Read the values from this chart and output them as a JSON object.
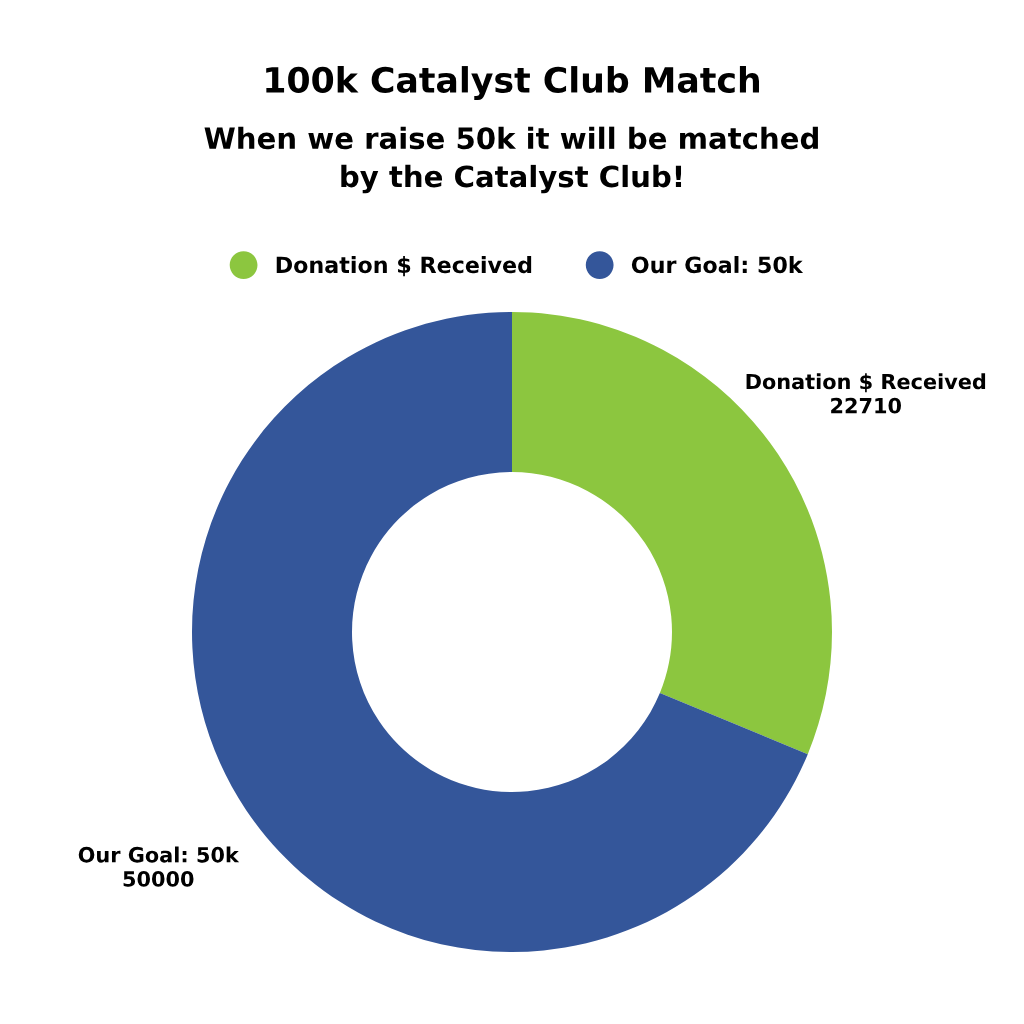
{
  "chart_data": {
    "type": "donut",
    "title": "100k Catalyst Club Match",
    "subtitle": "When we raise 50k it will be matched\nby the Catalyst Club!",
    "categories": [
      "Donation $ Received",
      "Our Goal: 50k"
    ],
    "values": [
      22710,
      50000
    ],
    "colors": [
      "#8cc63f",
      "#34569a"
    ],
    "legend": "top",
    "data_labels": true
  }
}
